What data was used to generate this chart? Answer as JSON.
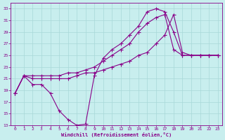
{
  "xlabel": "Windchill (Refroidissement éolien,°C)",
  "background_color": "#c8eeee",
  "grid_color": "#a8d8d8",
  "line_color": "#880088",
  "xlim_min": -0.5,
  "xlim_max": 23.5,
  "ylim_min": 13,
  "ylim_max": 34,
  "xticks": [
    0,
    1,
    2,
    3,
    4,
    5,
    6,
    7,
    8,
    9,
    10,
    11,
    12,
    13,
    14,
    15,
    16,
    17,
    18,
    19,
    20,
    21,
    22,
    23
  ],
  "yticks": [
    13,
    15,
    17,
    19,
    21,
    23,
    25,
    27,
    29,
    31,
    33
  ],
  "curve1_x": [
    0,
    1,
    2,
    3,
    4,
    5,
    6,
    7,
    8,
    9,
    10,
    11,
    12,
    13,
    14,
    15,
    16,
    17,
    18,
    19,
    20,
    21,
    22,
    23
  ],
  "curve1_y": [
    18.5,
    21.5,
    20.0,
    20.0,
    18.5,
    15.5,
    14.0,
    13.0,
    13.2,
    21.5,
    24.5,
    26.0,
    27.0,
    28.5,
    30.0,
    32.5,
    33.0,
    32.5,
    29.0,
    25.0,
    25.0,
    25.0,
    25.0,
    25.0
  ],
  "curve2_x": [
    0,
    1,
    2,
    3,
    4,
    5,
    6,
    7,
    8,
    9,
    10,
    11,
    12,
    13,
    14,
    15,
    16,
    17,
    18,
    19,
    20,
    21,
    22,
    23
  ],
  "curve2_y": [
    18.5,
    21.5,
    21.5,
    21.5,
    21.5,
    21.5,
    22.0,
    22.0,
    22.5,
    23.0,
    24.0,
    25.0,
    26.0,
    27.0,
    29.0,
    30.5,
    31.5,
    32.0,
    26.0,
    25.0,
    25.0,
    25.0,
    25.0,
    25.0
  ],
  "curve3_x": [
    0,
    1,
    2,
    3,
    4,
    5,
    6,
    7,
    8,
    9,
    10,
    11,
    12,
    13,
    14,
    15,
    16,
    17,
    18,
    19,
    20,
    21,
    22,
    23
  ],
  "curve3_y": [
    18.5,
    21.5,
    21.0,
    21.0,
    21.0,
    21.0,
    21.0,
    21.5,
    22.0,
    22.0,
    22.5,
    23.0,
    23.5,
    24.0,
    25.0,
    25.5,
    27.0,
    28.5,
    32.0,
    25.5,
    25.0,
    25.0,
    25.0,
    25.0
  ]
}
